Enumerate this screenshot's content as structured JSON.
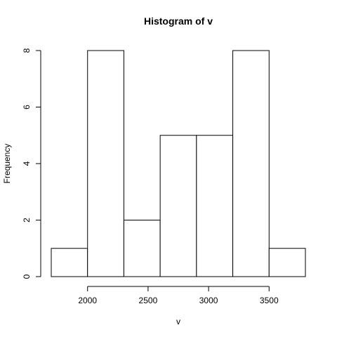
{
  "chart_data": {
    "type": "bar",
    "title": "Histogram of v",
    "xlabel": "v",
    "ylabel": "Frequency",
    "bins": [
      {
        "start": 1700,
        "end": 2000,
        "count": 1
      },
      {
        "start": 2000,
        "end": 2300,
        "count": 8
      },
      {
        "start": 2300,
        "end": 2600,
        "count": 2
      },
      {
        "start": 2600,
        "end": 2900,
        "count": 5
      },
      {
        "start": 2900,
        "end": 3200,
        "count": 5
      },
      {
        "start": 3200,
        "end": 3500,
        "count": 8
      },
      {
        "start": 3500,
        "end": 3800,
        "count": 1
      }
    ],
    "xticks": [
      2000,
      2500,
      3000,
      3500
    ],
    "yticks": [
      0,
      2,
      4,
      6,
      8
    ],
    "xlim": [
      1700,
      3800
    ],
    "ylim": [
      0,
      8
    ],
    "grid": false
  }
}
